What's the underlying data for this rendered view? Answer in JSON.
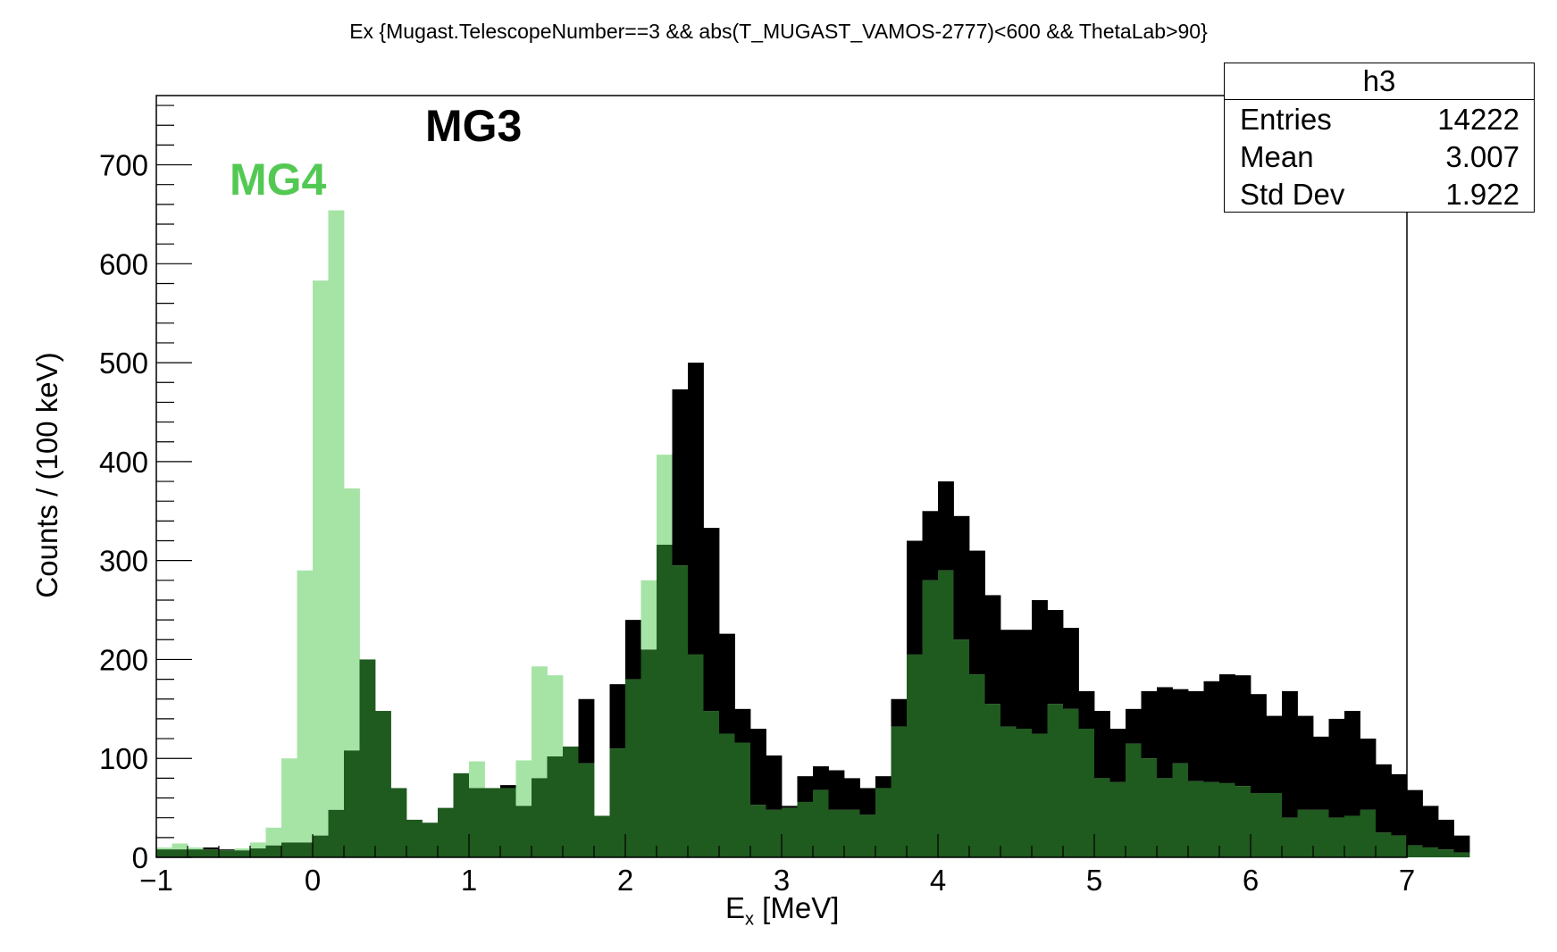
{
  "title": "Ex {Mugast.TelescopeNumber==3 && abs(T_MUGAST_VAMOS-2777)<600 && ThetaLab>90}",
  "stats": {
    "name": "h3",
    "rows": [
      {
        "label": "Entries",
        "value": "14222"
      },
      {
        "label": "Mean",
        "value": "3.007"
      },
      {
        "label": "Std Dev",
        "value": "1.922"
      }
    ]
  },
  "annotations": {
    "mg3": "MG3",
    "mg4": "MG4"
  },
  "colors": {
    "mg3_fill": "#000000",
    "mg4_fill": "#a6e4a6",
    "overlap_fill": "#1f5a1f",
    "mg4_label": "#53c953"
  },
  "chart_data": {
    "type": "bar",
    "xlabel_main": "E",
    "xlabel_sub": "x",
    "xlabel_rest": " [MeV]",
    "ylabel": "Counts / (100 keV)",
    "xlim": [
      -1,
      7
    ],
    "ylim": [
      0,
      770
    ],
    "bin_start": -1.0,
    "bin_width": 0.1,
    "xticks": [
      "−1",
      "0",
      "1",
      "2",
      "3",
      "4",
      "5",
      "6",
      "7"
    ],
    "yticks": [
      "0",
      "100",
      "200",
      "300",
      "400",
      "500",
      "600",
      "700"
    ],
    "series": [
      {
        "name": "MG3",
        "values": [
          8,
          8,
          8,
          10,
          8,
          7,
          9,
          12,
          15,
          15,
          22,
          48,
          108,
          200,
          148,
          70,
          38,
          35,
          50,
          85,
          70,
          70,
          73,
          52,
          80,
          102,
          112,
          160,
          42,
          175,
          240,
          210,
          316,
          473,
          500,
          333,
          226,
          150,
          130,
          103,
          52,
          82,
          92,
          88,
          80,
          70,
          82,
          160,
          320,
          350,
          380,
          345,
          310,
          265,
          230,
          230,
          260,
          250,
          232,
          168,
          148,
          130,
          150,
          168,
          172,
          170,
          168,
          178,
          185,
          184,
          165,
          143,
          168,
          143,
          122,
          140,
          148,
          120,
          94,
          84,
          68,
          52,
          38,
          22
        ]
      },
      {
        "name": "MG4",
        "values": [
          10,
          14,
          10,
          8,
          7,
          9,
          15,
          30,
          100,
          290,
          583,
          654,
          373,
          200,
          148,
          70,
          38,
          35,
          50,
          85,
          97,
          70,
          70,
          98,
          193,
          184,
          112,
          95,
          42,
          110,
          180,
          280,
          407,
          295,
          205,
          148,
          125,
          116,
          53,
          48,
          50,
          56,
          68,
          48,
          48,
          43,
          70,
          132,
          205,
          280,
          290,
          220,
          185,
          155,
          132,
          130,
          125,
          155,
          150,
          130,
          80,
          76,
          115,
          100,
          80,
          95,
          77,
          76,
          75,
          72,
          65,
          65,
          40,
          48,
          48,
          40,
          42,
          48,
          25,
          22,
          12,
          10,
          8,
          5
        ]
      }
    ]
  }
}
